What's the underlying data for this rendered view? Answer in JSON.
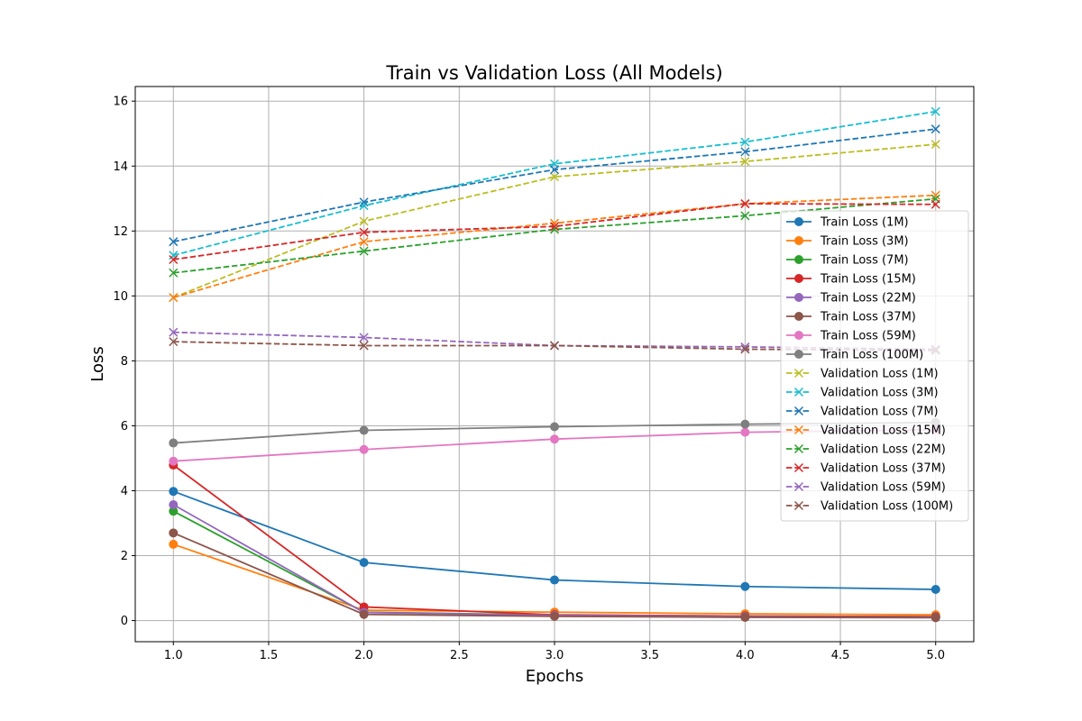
{
  "chart_data": {
    "type": "line",
    "title": "Train vs Validation Loss (All Models)",
    "xlabel": "Epochs",
    "ylabel": "Loss",
    "x": [
      1.0,
      2.0,
      3.0,
      4.0,
      5.0
    ],
    "xlim": [
      0.8,
      5.2
    ],
    "ylim": [
      -0.65,
      16.45
    ],
    "xticks": [
      1.0,
      1.5,
      2.0,
      2.5,
      3.0,
      3.5,
      4.0,
      4.5,
      5.0
    ],
    "xtick_labels": [
      "1.0",
      "1.5",
      "2.0",
      "2.5",
      "3.0",
      "3.5",
      "4.0",
      "4.5",
      "5.0"
    ],
    "yticks": [
      0,
      2,
      4,
      6,
      8,
      10,
      12,
      14,
      16
    ],
    "ytick_labels": [
      "0",
      "2",
      "4",
      "6",
      "8",
      "10",
      "12",
      "14",
      "16"
    ],
    "grid": true,
    "legend_position": "right",
    "series": [
      {
        "name": "Train Loss (1M)",
        "color": "#1f77b4",
        "style": "solid",
        "marker": "circle",
        "values": [
          3.98,
          1.79,
          1.25,
          1.05,
          0.96
        ]
      },
      {
        "name": "Train Loss (3M)",
        "color": "#ff7f0e",
        "style": "solid",
        "marker": "circle",
        "values": [
          2.35,
          0.32,
          0.26,
          0.21,
          0.18
        ]
      },
      {
        "name": "Train Loss (7M)",
        "color": "#2ca02c",
        "style": "solid",
        "marker": "circle",
        "values": [
          3.37,
          0.26,
          0.17,
          0.14,
          0.12
        ]
      },
      {
        "name": "Train Loss (15M)",
        "color": "#d62728",
        "style": "solid",
        "marker": "circle",
        "values": [
          4.79,
          0.42,
          0.18,
          0.14,
          0.12
        ]
      },
      {
        "name": "Train Loss (22M)",
        "color": "#9467bd",
        "style": "solid",
        "marker": "circle",
        "values": [
          3.57,
          0.25,
          0.16,
          0.12,
          0.1
        ]
      },
      {
        "name": "Train Loss (37M)",
        "color": "#8c564b",
        "style": "solid",
        "marker": "circle",
        "values": [
          2.7,
          0.19,
          0.13,
          0.1,
          0.09
        ]
      },
      {
        "name": "Train Loss (59M)",
        "color": "#e377c2",
        "style": "solid",
        "marker": "circle",
        "values": [
          4.91,
          5.27,
          5.59,
          5.8,
          5.88
        ]
      },
      {
        "name": "Train Loss (100M)",
        "color": "#7f7f7f",
        "style": "solid",
        "marker": "circle",
        "values": [
          5.47,
          5.86,
          5.97,
          6.05,
          6.1
        ]
      },
      {
        "name": "Validation Loss (1M)",
        "color": "#bcbd22",
        "style": "dashed",
        "marker": "x",
        "values": [
          9.95,
          12.3,
          13.67,
          14.14,
          14.67
        ]
      },
      {
        "name": "Validation Loss (3M)",
        "color": "#17becf",
        "style": "dashed",
        "marker": "x",
        "values": [
          11.25,
          12.78,
          14.07,
          14.74,
          15.68
        ]
      },
      {
        "name": "Validation Loss (7M)",
        "color": "#1f77b4",
        "style": "dashed",
        "marker": "x",
        "values": [
          11.67,
          12.89,
          13.89,
          14.44,
          15.14
        ]
      },
      {
        "name": "Validation Loss (15M)",
        "color": "#ff7f0e",
        "style": "dashed",
        "marker": "x",
        "values": [
          9.95,
          11.67,
          12.24,
          12.84,
          13.1
        ]
      },
      {
        "name": "Validation Loss (22M)",
        "color": "#2ca02c",
        "style": "dashed",
        "marker": "x",
        "values": [
          10.71,
          11.38,
          12.05,
          12.47,
          12.99
        ]
      },
      {
        "name": "Validation Loss (37M)",
        "color": "#d62728",
        "style": "dashed",
        "marker": "x",
        "values": [
          11.12,
          11.96,
          12.14,
          12.84,
          12.82
        ]
      },
      {
        "name": "Validation Loss (59M)",
        "color": "#9467bd",
        "style": "dashed",
        "marker": "x",
        "values": [
          8.88,
          8.72,
          8.47,
          8.43,
          8.36
        ]
      },
      {
        "name": "Validation Loss (100M)",
        "color": "#8c564b",
        "style": "dashed",
        "marker": "x",
        "values": [
          8.59,
          8.47,
          8.47,
          8.36,
          8.32
        ]
      }
    ]
  }
}
